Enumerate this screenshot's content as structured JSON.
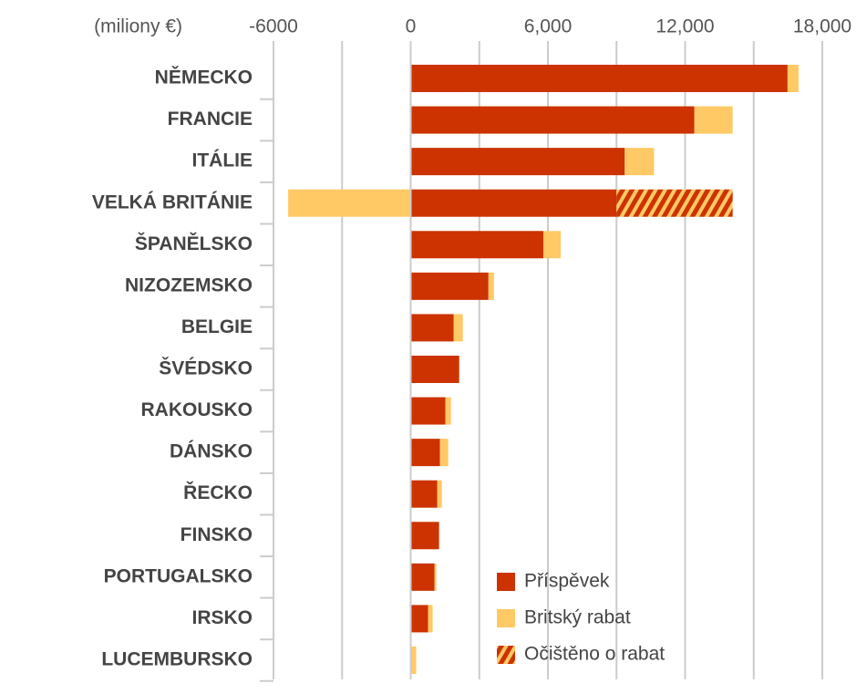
{
  "chart_data": {
    "type": "stacked_barh",
    "unit_label": "(miliony €)",
    "categories": [
      "NĚMECKO",
      "FRANCIE",
      "ITÁLIE",
      "VELKÁ BRITÁNIE",
      "ŠPANĚLSKO",
      "NIZOZEMSKO",
      "BELGIE",
      "ŠVÉDSKO",
      "RAKOUSKO",
      "DÁNSKO",
      "ŘECKO",
      "FINSKO",
      "PORTUGALSKO",
      "IRSKO",
      "LUCEMBURSKO"
    ],
    "series": [
      {
        "name": "Příspěvek",
        "color": "#cc3300",
        "values": [
          16480,
          12400,
          9360,
          9000,
          5800,
          3400,
          1880,
          2120,
          1520,
          1280,
          1160,
          1240,
          1040,
          760,
          0
        ]
      },
      {
        "name": "Britský rabat",
        "color": "#ffc966",
        "values": [
          480,
          1680,
          1280,
          -5360,
          760,
          240,
          400,
          0,
          240,
          360,
          200,
          0,
          80,
          200,
          240
        ]
      },
      {
        "name": "Očištěno o rabat",
        "color": "#cc3300",
        "hatch": "#ffc966",
        "values": [
          null,
          null,
          null,
          5080,
          null,
          null,
          null,
          null,
          null,
          null,
          null,
          null,
          null,
          null,
          null
        ]
      }
    ],
    "xlim": [
      -6000,
      18000
    ],
    "xticks": [
      -6000,
      0,
      {
        "value": 6000,
        "label": "6,000"
      },
      {
        "value": 12000,
        "label": "12,000"
      },
      {
        "value": 18000,
        "label": "18,000"
      }
    ],
    "xgrid": [
      -6000,
      -3000,
      0,
      3000,
      6000,
      9000,
      12000,
      15000,
      18000
    ],
    "legend": "lower right"
  }
}
